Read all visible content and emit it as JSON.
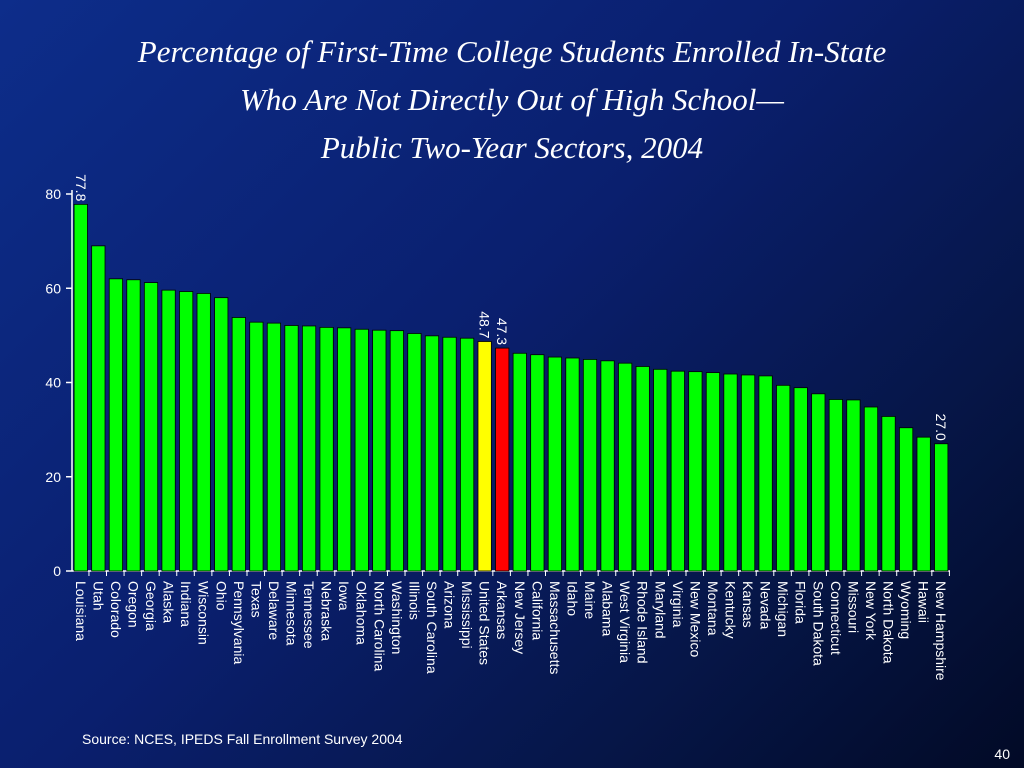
{
  "slide": {
    "title_lines": [
      "Percentage of First-Time College Students Enrolled In-State",
      "Who Are Not Directly Out of High School—",
      "Public Two-Year Sectors, 2004"
    ],
    "source": "Source:  NCES, IPEDS Fall Enrollment Survey 2004",
    "page_number": "40"
  },
  "colors": {
    "default_bar": "#00ff00",
    "united_states_bar": "#ffff00",
    "arkansas_bar": "#ff0000",
    "axis": "#ffffff",
    "text": "#ffffff"
  },
  "chart_data": {
    "type": "bar",
    "title": "Percentage of First-Time College Students Enrolled In-State Who Are Not Directly Out of High School— Public Two-Year Sectors, 2004",
    "xlabel": "",
    "ylabel": "",
    "ylim": [
      0,
      80
    ],
    "yticks": [
      0,
      20,
      40,
      60,
      80
    ],
    "grid": false,
    "legend": "none",
    "categories": [
      "Louisiana",
      "Utah",
      "Colorado",
      "Oregon",
      "Georgia",
      "Alaska",
      "Indiana",
      "Wisconsin",
      "Ohio",
      "Pennsylvania",
      "Texas",
      "Delaware",
      "Minnesota",
      "Tennessee",
      "Nebraska",
      "Iowa",
      "Oklahoma",
      "North Carolina",
      "Washington",
      "Illinois",
      "South Carolina",
      "Arizona",
      "Mississippi",
      "United States",
      "Arkansas",
      "New Jersey",
      "California",
      "Massachusetts",
      "Idaho",
      "Maine",
      "Alabama",
      "West Virginia",
      "Rhode Island",
      "Maryland",
      "Virginia",
      "New Mexico",
      "Montana",
      "Kentucky",
      "Kansas",
      "Nevada",
      "Michigan",
      "Florida",
      "South Dakota",
      "Connecticut",
      "Missouri",
      "New York",
      "North Dakota",
      "Wyoming",
      "Hawaii",
      "New Hampshire"
    ],
    "values": [
      77.8,
      69.0,
      62.0,
      61.8,
      61.2,
      59.6,
      59.3,
      58.9,
      58.0,
      53.8,
      52.8,
      52.6,
      52.1,
      52.0,
      51.7,
      51.6,
      51.3,
      51.1,
      51.0,
      50.4,
      49.9,
      49.6,
      49.4,
      48.7,
      47.3,
      46.2,
      45.9,
      45.4,
      45.2,
      44.9,
      44.6,
      44.1,
      43.4,
      42.8,
      42.4,
      42.3,
      42.1,
      41.8,
      41.6,
      41.4,
      39.4,
      38.9,
      37.6,
      36.4,
      36.3,
      34.8,
      32.8,
      30.4,
      28.4,
      27.0
    ],
    "data_labels": [
      {
        "category": "Louisiana",
        "text": "77.8"
      },
      {
        "category": "United States",
        "text": "48.7"
      },
      {
        "category": "Arkansas",
        "text": "47.3"
      },
      {
        "category": "New Hampshire",
        "text": "27.0"
      }
    ],
    "highlight": {
      "United States": "#ffff00",
      "Arkansas": "#ff0000"
    }
  }
}
